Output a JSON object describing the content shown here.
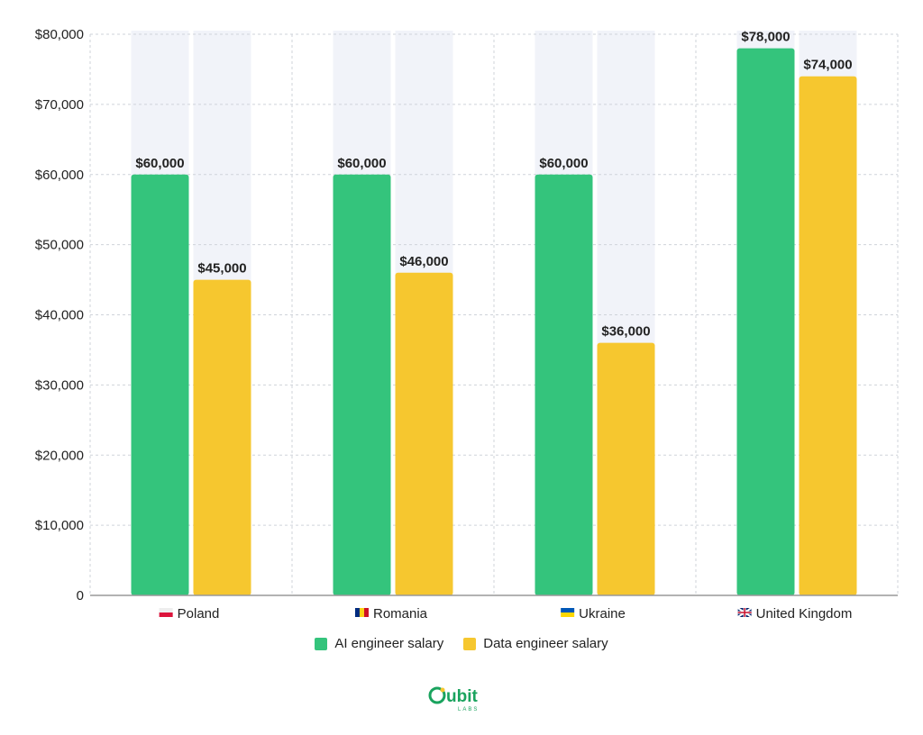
{
  "colors": {
    "ai": "#34c47c",
    "data": "#f6c72f",
    "band": "#f1f3f9",
    "grid": "#cfd3da",
    "axis": "#999999",
    "logo": "#1aa35e"
  },
  "legend": [
    {
      "label": "AI engineer salary",
      "color": "#34c47c"
    },
    {
      "label": "Data engineer salary",
      "color": "#f6c72f"
    }
  ],
  "logo": {
    "text": "Qubit",
    "subtext": "LABS"
  },
  "chart_data": {
    "type": "bar",
    "categories": [
      "Poland",
      "Romania",
      "Ukraine",
      "United Kingdom"
    ],
    "category_flags": [
      "poland-flag",
      "romania-flag",
      "ukraine-flag",
      "uk-flag"
    ],
    "series": [
      {
        "name": "AI engineer salary",
        "values": [
          60000,
          60000,
          60000,
          78000
        ],
        "labels": [
          "$60,000",
          "$60,000",
          "$60,000",
          "$78,000"
        ]
      },
      {
        "name": "Data engineer salary",
        "values": [
          45000,
          46000,
          36000,
          74000
        ],
        "labels": [
          "$45,000",
          "$46,000",
          "$36,000",
          "$74,000"
        ]
      }
    ],
    "ylim": [
      0,
      80000
    ],
    "yticks": [
      0,
      10000,
      20000,
      30000,
      40000,
      50000,
      60000,
      70000,
      80000
    ],
    "ytick_labels": [
      "0",
      "$10,000",
      "$20,000",
      "$30,000",
      "$40,000",
      "$50,000",
      "$60,000",
      "$70,000",
      "$80,000"
    ],
    "grid": true,
    "legend_position": "bottom-center"
  }
}
